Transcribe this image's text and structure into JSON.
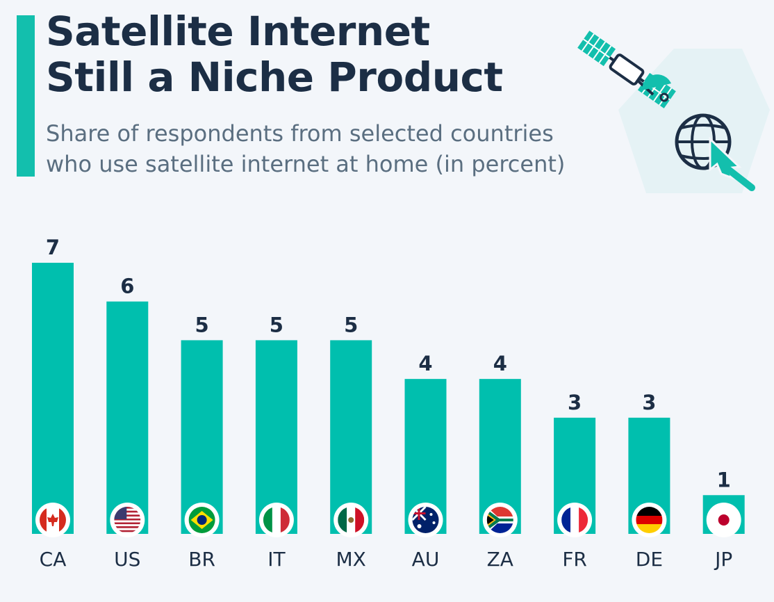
{
  "header": {
    "title_line1": "Satellite Internet",
    "title_line2": "Still a Niche Product",
    "subtitle_line1": "Share of respondents from selected countries",
    "subtitle_line2": "who use satellite internet at home (in percent)"
  },
  "colors": {
    "accent": "#13bfad",
    "bar": "#00bfae",
    "text_dark": "#1c2e45",
    "text_muted": "#5a6e80",
    "background": "#f3f6fa"
  },
  "icons": [
    "satellite-icon",
    "globe-icon",
    "cursor-arrow-icon"
  ],
  "chart_data": {
    "type": "bar",
    "categories": [
      "CA",
      "US",
      "BR",
      "IT",
      "MX",
      "AU",
      "ZA",
      "FR",
      "DE",
      "JP"
    ],
    "values": [
      7,
      6,
      5,
      5,
      5,
      4,
      4,
      3,
      3,
      1
    ],
    "flags": [
      "flag-canada-icon",
      "flag-usa-icon",
      "flag-brazil-icon",
      "flag-italy-icon",
      "flag-mexico-icon",
      "flag-australia-icon",
      "flag-south-africa-icon",
      "flag-france-icon",
      "flag-germany-icon",
      "flag-japan-icon"
    ],
    "ylim": [
      0,
      7
    ],
    "grid": false,
    "legend": "none"
  }
}
